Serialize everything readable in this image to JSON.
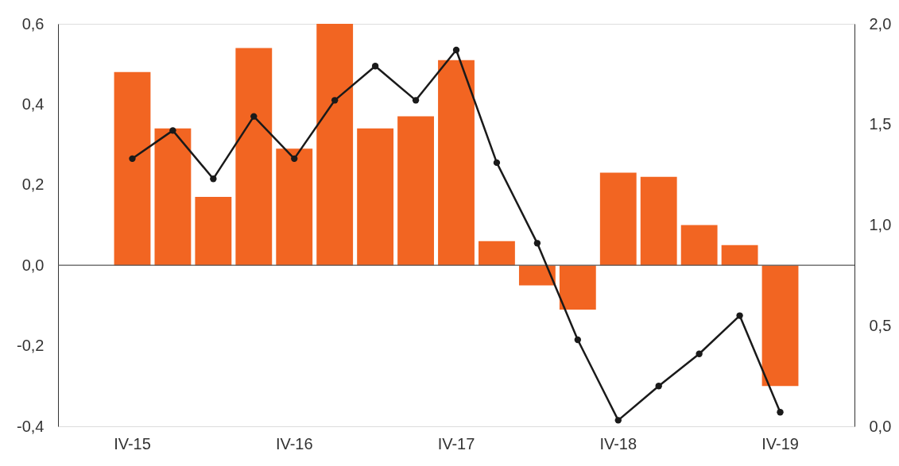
{
  "chart_data": {
    "type": "bar",
    "categories": [
      "IV-15",
      null,
      null,
      null,
      "IV-16",
      null,
      null,
      null,
      "IV-17",
      null,
      null,
      null,
      "IV-18",
      null,
      null,
      null,
      "IV-19"
    ],
    "series": [
      {
        "color": "#f26522",
        "values": [
          0.48,
          0.34,
          0.17,
          0.54,
          0.29,
          0.6,
          0.34,
          0.37,
          0.51,
          0.06,
          -0.05,
          -0.11,
          0.23,
          0.22,
          0.1,
          0.05,
          -0.3
        ]
      },
      {
        "type": "line",
        "axis": "y2",
        "color": "#1a1a1a",
        "values": [
          1.33,
          1.47,
          1.23,
          1.54,
          1.33,
          1.62,
          1.79,
          1.62,
          1.87,
          1.31,
          0.91,
          0.43,
          0.03,
          0.2,
          0.36,
          0.55,
          0.07
        ]
      }
    ],
    "ylim": [
      -0.4,
      0.6
    ],
    "yticks": [
      {
        "value": -0.4,
        "label": "-0,4"
      },
      {
        "value": -0.2,
        "label": "-0,2"
      },
      {
        "value": 0,
        "label": "0,0"
      },
      {
        "value": 0.2,
        "label": "0,2"
      },
      {
        "value": 0.4,
        "label": "0,4"
      },
      {
        "value": 0.6,
        "label": "0,6"
      }
    ],
    "y2lim": [
      0,
      2
    ],
    "y2ticks": [
      {
        "value": 0,
        "label": "0,0"
      },
      {
        "value": 0.5,
        "label": "0,5"
      },
      {
        "value": 1,
        "label": "1,0"
      },
      {
        "value": 1.5,
        "label": "1,5"
      },
      {
        "value": 2,
        "label": "2,0"
      }
    ],
    "ref_lines": [
      {
        "axis": "y",
        "value": 0,
        "color": "#555555"
      }
    ],
    "marker": "circle",
    "line_style": "solid",
    "grid": false
  }
}
